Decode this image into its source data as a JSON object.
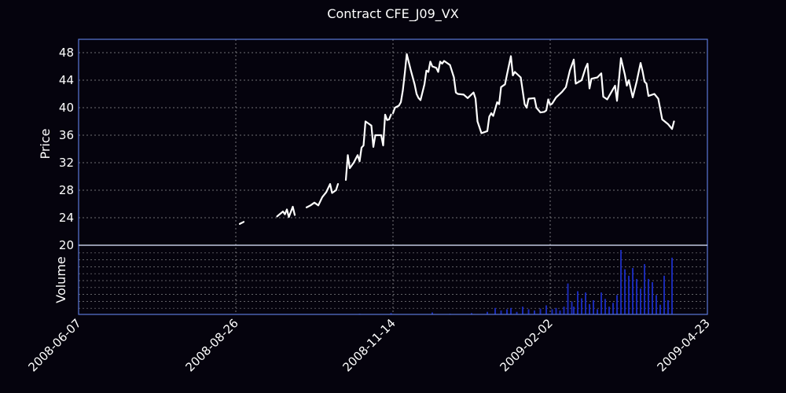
{
  "chart_data": {
    "type": "line",
    "title": "Contract CFE_J09_VX",
    "ylabel": "Price",
    "volume_ylabel": "Volume",
    "ylim": [
      20,
      50
    ],
    "yticks": [
      20,
      24,
      28,
      32,
      36,
      40,
      44,
      48
    ],
    "xlim": [
      "2008-06-07",
      "2009-04-23"
    ],
    "xticks": [
      "2008-06-07",
      "2008-08-26",
      "2008-11-14",
      "2009-02-02",
      "2009-04-23"
    ],
    "grid": true,
    "colors": {
      "background": "#05030d",
      "line": "#ffffff",
      "axes": "#5a78d8",
      "grid": "#b8b8b8",
      "volume": "#1a2ab4"
    },
    "price_segments": [
      [
        [
          "2008-08-28",
          23.1
        ],
        [
          "2008-08-30",
          23.4
        ]
      ],
      [
        [
          "2008-09-16",
          24.2
        ],
        [
          "2008-09-19",
          24.9
        ],
        [
          "2008-09-20",
          24.5
        ],
        [
          "2008-09-21",
          25.2
        ],
        [
          "2008-09-22",
          24.1
        ],
        [
          "2008-09-24",
          25.6
        ],
        [
          "2008-09-25",
          24.4
        ]
      ],
      [
        [
          "2008-10-01",
          25.5
        ],
        [
          "2008-10-03",
          25.8
        ],
        [
          "2008-10-05",
          26.2
        ],
        [
          "2008-10-07",
          25.8
        ],
        [
          "2008-10-09",
          27.0
        ],
        [
          "2008-10-11",
          27.7
        ],
        [
          "2008-10-13",
          28.9
        ],
        [
          "2008-10-14",
          27.6
        ],
        [
          "2008-10-16",
          28.0
        ],
        [
          "2008-10-17",
          28.9
        ]
      ],
      [
        [
          "2008-10-21",
          29.5
        ],
        [
          "2008-10-22",
          33.1
        ],
        [
          "2008-10-23",
          31.2
        ],
        [
          "2008-10-25",
          32.0
        ],
        [
          "2008-10-27",
          33.1
        ],
        [
          "2008-10-28",
          32.2
        ],
        [
          "2008-10-29",
          34.2
        ],
        [
          "2008-10-30",
          34.5
        ],
        [
          "2008-10-31",
          38.0
        ],
        [
          "2008-11-02",
          37.6
        ],
        [
          "2008-11-03",
          37.4
        ],
        [
          "2008-11-04",
          34.3
        ],
        [
          "2008-11-05",
          36.0
        ],
        [
          "2008-11-08",
          36.0
        ],
        [
          "2008-11-09",
          34.5
        ],
        [
          "2008-11-10",
          39.0
        ],
        [
          "2008-11-11",
          38.2
        ],
        [
          "2008-11-12",
          38.3
        ],
        [
          "2008-11-13",
          39.0
        ]
      ],
      [
        [
          "2008-11-14",
          39.2
        ],
        [
          "2008-11-15",
          40.0
        ],
        [
          "2008-11-17",
          40.3
        ],
        [
          "2008-11-18",
          40.8
        ],
        [
          "2008-11-19",
          42.5
        ],
        [
          "2008-11-20",
          45.0
        ],
        [
          "2008-11-21",
          47.8
        ],
        [
          "2008-11-23",
          45.5
        ],
        [
          "2008-11-25",
          43.4
        ],
        [
          "2008-11-26",
          42.0
        ],
        [
          "2008-11-27",
          41.4
        ],
        [
          "2008-11-28",
          41.1
        ],
        [
          "2008-11-30",
          43.4
        ],
        [
          "2008-12-01",
          45.4
        ],
        [
          "2008-12-02",
          45.2
        ],
        [
          "2008-12-03",
          46.7
        ],
        [
          "2008-12-04",
          46.0
        ],
        [
          "2008-12-06",
          45.8
        ],
        [
          "2008-12-07",
          45.2
        ],
        [
          "2008-12-08",
          46.7
        ],
        [
          "2008-12-09",
          46.4
        ],
        [
          "2008-12-10",
          46.8
        ],
        [
          "2008-12-13",
          46.2
        ],
        [
          "2008-12-15",
          44.4
        ],
        [
          "2008-12-16",
          42.2
        ],
        [
          "2008-12-17",
          42.0
        ],
        [
          "2008-12-20",
          41.9
        ],
        [
          "2008-12-22",
          41.4
        ],
        [
          "2008-12-25",
          42.2
        ],
        [
          "2008-12-26",
          41.3
        ],
        [
          "2008-12-27",
          38.0
        ],
        [
          "2008-12-29",
          36.3
        ],
        [
          "2009-01-01",
          36.6
        ],
        [
          "2009-01-02",
          38.7
        ],
        [
          "2009-01-03",
          39.2
        ],
        [
          "2009-01-04",
          38.8
        ],
        [
          "2009-01-06",
          40.8
        ],
        [
          "2009-01-07",
          40.5
        ],
        [
          "2009-01-08",
          43.0
        ],
        [
          "2009-01-10",
          43.4
        ],
        [
          "2009-01-11",
          44.8
        ],
        [
          "2009-01-13",
          47.5
        ],
        [
          "2009-01-14",
          44.7
        ],
        [
          "2009-01-15",
          45.2
        ],
        [
          "2009-01-18",
          44.4
        ],
        [
          "2009-01-20",
          40.5
        ],
        [
          "2009-01-21",
          40.0
        ],
        [
          "2009-01-22",
          41.3
        ],
        [
          "2009-01-25",
          41.4
        ],
        [
          "2009-01-26",
          40.0
        ],
        [
          "2009-01-28",
          39.3
        ],
        [
          "2009-01-30",
          39.4
        ],
        [
          "2009-01-31",
          39.6
        ],
        [
          "2009-02-01",
          41.2
        ],
        [
          "2009-02-02",
          40.4
        ],
        [
          "2009-02-03",
          40.6
        ],
        [
          "2009-02-05",
          41.5
        ],
        [
          "2009-02-08",
          42.3
        ],
        [
          "2009-02-10",
          43.0
        ],
        [
          "2009-02-12",
          45.4
        ],
        [
          "2009-02-14",
          47.0
        ],
        [
          "2009-02-15",
          43.5
        ],
        [
          "2009-02-18",
          44.0
        ],
        [
          "2009-02-20",
          45.8
        ],
        [
          "2009-02-21",
          46.4
        ],
        [
          "2009-02-22",
          42.8
        ],
        [
          "2009-02-23",
          44.2
        ],
        [
          "2009-02-26",
          44.4
        ],
        [
          "2009-02-28",
          45.0
        ],
        [
          "2009-03-01",
          41.6
        ],
        [
          "2009-03-03",
          41.2
        ],
        [
          "2009-03-05",
          42.2
        ],
        [
          "2009-03-07",
          43.2
        ],
        [
          "2009-03-08",
          41.0
        ],
        [
          "2009-03-10",
          47.2
        ],
        [
          "2009-03-12",
          44.8
        ],
        [
          "2009-03-13",
          43.2
        ],
        [
          "2009-03-14",
          44.0
        ],
        [
          "2009-03-16",
          41.5
        ],
        [
          "2009-03-18",
          43.8
        ],
        [
          "2009-03-20",
          46.5
        ],
        [
          "2009-03-21",
          45.3
        ],
        [
          "2009-03-22",
          43.8
        ],
        [
          "2009-03-23",
          43.5
        ],
        [
          "2009-03-24",
          41.7
        ],
        [
          "2009-03-27",
          42.0
        ],
        [
          "2009-03-29",
          41.3
        ],
        [
          "2009-03-31",
          38.3
        ],
        [
          "2009-04-03",
          37.6
        ],
        [
          "2009-04-05",
          36.9
        ],
        [
          "2009-04-06",
          38.0
        ]
      ]
    ],
    "volume": [
      [
        "2008-10-28",
        1
      ],
      [
        "2008-11-13",
        2
      ],
      [
        "2008-12-04",
        3
      ],
      [
        "2008-12-13",
        1
      ],
      [
        "2008-12-24",
        2
      ],
      [
        "2009-01-01",
        4
      ],
      [
        "2009-01-05",
        10
      ],
      [
        "2009-01-08",
        6
      ],
      [
        "2009-01-11",
        8
      ],
      [
        "2009-01-13",
        10
      ],
      [
        "2009-01-16",
        4
      ],
      [
        "2009-01-19",
        12
      ],
      [
        "2009-01-22",
        8
      ],
      [
        "2009-01-25",
        6
      ],
      [
        "2009-01-28",
        9
      ],
      [
        "2009-01-31",
        14
      ],
      [
        "2009-02-03",
        8
      ],
      [
        "2009-02-05",
        10
      ],
      [
        "2009-02-07",
        6
      ],
      [
        "2009-02-09",
        12
      ],
      [
        "2009-02-11",
        48
      ],
      [
        "2009-02-13",
        20
      ],
      [
        "2009-02-14",
        12
      ],
      [
        "2009-02-16",
        36
      ],
      [
        "2009-02-18",
        25
      ],
      [
        "2009-02-20",
        34
      ],
      [
        "2009-02-22",
        16
      ],
      [
        "2009-02-24",
        22
      ],
      [
        "2009-02-26",
        8
      ],
      [
        "2009-02-28",
        34
      ],
      [
        "2009-03-02",
        24
      ],
      [
        "2009-03-04",
        12
      ],
      [
        "2009-03-06",
        18
      ],
      [
        "2009-03-08",
        30
      ],
      [
        "2009-03-10",
        100
      ],
      [
        "2009-03-12",
        70
      ],
      [
        "2009-03-14",
        60
      ],
      [
        "2009-03-16",
        72
      ],
      [
        "2009-03-18",
        55
      ],
      [
        "2009-03-20",
        40
      ],
      [
        "2009-03-22",
        78
      ],
      [
        "2009-03-24",
        55
      ],
      [
        "2009-03-26",
        50
      ],
      [
        "2009-03-28",
        30
      ],
      [
        "2009-03-30",
        15
      ],
      [
        "2009-04-01",
        60
      ],
      [
        "2009-04-03",
        22
      ],
      [
        "2009-04-05",
        88
      ]
    ]
  }
}
